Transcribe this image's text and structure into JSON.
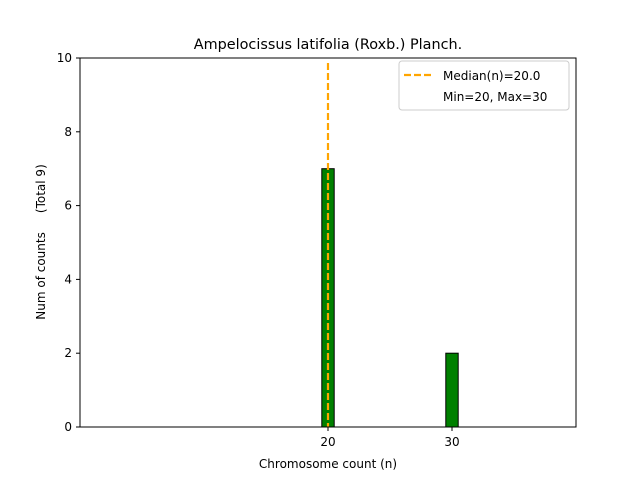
{
  "chart_data": {
    "type": "bar",
    "title": "Ampelocissus latifolia (Roxb.) Planch.",
    "xlabel": "Chromosome count (n)",
    "ylabel": "Num of counts     (Total 9)",
    "xlim": [
      0,
      40
    ],
    "ylim": [
      0,
      10
    ],
    "xticks": [
      20,
      30
    ],
    "yticks": [
      0,
      2,
      4,
      6,
      8,
      10
    ],
    "bar_width": 1,
    "bars": [
      {
        "x": 20,
        "value": 7
      },
      {
        "x": 30,
        "value": 2
      }
    ],
    "baseline_end": 33.5,
    "median_line": {
      "x": 20.0,
      "label": "Median(n)=20.0",
      "color": "#ffa500"
    },
    "legend": {
      "location": "top-right",
      "entries": [
        "Median(n)=20.0",
        "Min=20, Max=30"
      ]
    },
    "bar_color": "#008000",
    "edge_color": "#000000",
    "grid": false
  }
}
